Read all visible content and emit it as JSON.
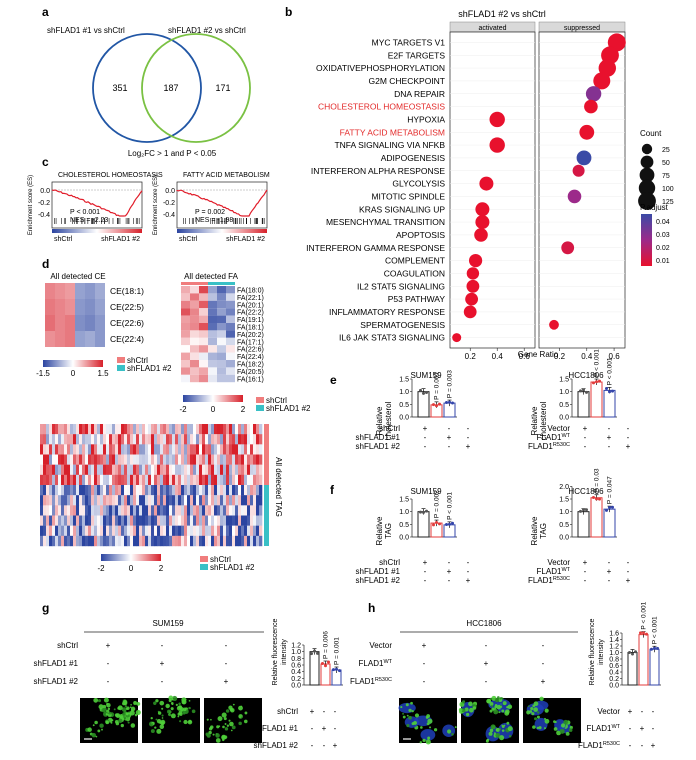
{
  "panels": {
    "a": {
      "label": "a",
      "left_title": "shFLAD1 #1 vs shCtrl",
      "right_title": "shFLAD1 #2 vs shCtrl",
      "left_only": "351",
      "overlap": "187",
      "right_only": "171",
      "caption": "Log₂FC > 1 and P < 0.05",
      "colors": {
        "left": "#2156a5",
        "right": "#7ac143"
      }
    },
    "b": {
      "label": "b",
      "title": "shFLAD1 #2 vs shCtrl",
      "facets": [
        "activated",
        "suppressed"
      ],
      "xlabel": "Gene Ratio",
      "size_legend_title": "Count",
      "color_legend_title": "P.adjust"
    },
    "c": {
      "label": "c",
      "plots": [
        {
          "title": "CHOLESTEROL HOMEOSTASIS",
          "ylabel": "Enrichment score (ES)",
          "stat1": "P < 0.001",
          "stat2": "NES = -2.23",
          "left_group": "shCtrl",
          "right_group": "shFLAD1 #2",
          "y_ticks": [
            "0.0",
            "-0.2",
            "-0.4"
          ]
        },
        {
          "title": "FATTY ACID METABOLISM",
          "ylabel": "Enrichment score (ES)",
          "stat1": "P = 0.002",
          "stat2": "NES = -1.98",
          "left_group": "shCtrl",
          "right_group": "shFLAD1 #2",
          "y_ticks": [
            "0.0",
            "-0.2",
            "-0.4"
          ]
        }
      ]
    },
    "d": {
      "label": "d",
      "ce_title": "All detected CE",
      "ce_rows": [
        "CE(18:1)",
        "CE(22:5)",
        "CE(22:6)",
        "CE(22:4)"
      ],
      "ce_scale": [
        "-1.5",
        "0",
        "1.5"
      ],
      "fa_title": "All detected FA",
      "fa_rows": [
        "FA(18:0)",
        "FA(22:1)",
        "FA(20:1)",
        "FA(22:2)",
        "FA(19:1)",
        "FA(18:1)",
        "FA(20:2)",
        "FA(17:1)",
        "FA(22:6)",
        "FA(22:4)",
        "FA(18:2)",
        "FA(20:5)",
        "FA(16:1)"
      ],
      "fa_scale": [
        "-2",
        "0",
        "2"
      ],
      "tag_title": "All detected TAG",
      "tag_scale": [
        "-2",
        "0",
        "2"
      ],
      "legend_ctrl": "shCtrl",
      "legend_kd": "shFLAD1 #2",
      "colors": {
        "ctrl": "#f07d7d",
        "kd": "#39c0c6",
        "high": "#d7202a",
        "low": "#2b44a0"
      }
    },
    "e": {
      "label": "e",
      "left_title": "SUM159",
      "right_title": "HCC1806",
      "ylabel": "Relative cholesterol",
      "left_pvals": [
        "P = 0.001",
        "P = 0.003"
      ],
      "right_pvals": [
        "P < 0.001",
        "P < 0.001"
      ]
    },
    "f": {
      "label": "f",
      "left_title": "SUM159",
      "right_title": "HCC1806",
      "ylabel": "Relative TAG",
      "left_pvals": [
        "P = 0.002",
        "P < 0.001"
      ],
      "right_pvals": [
        "P = 0.03",
        "P = 0.047"
      ]
    },
    "g": {
      "label": "g",
      "title": "SUM159",
      "ylabel": "Relative fluorescence intensity",
      "pvals": [
        "P = 0.006",
        "P = 0.001"
      ]
    },
    "h": {
      "label": "h",
      "title": "HCC1806",
      "ylabel": "Relative fluorescence intensity",
      "pvals": [
        "P < 0.001",
        "P < 0.001"
      ]
    }
  },
  "groups_sum159": {
    "rows": [
      "shCtrl",
      "shFLAD1 #1",
      "shFLAD1 #2"
    ],
    "signs": [
      [
        "+",
        "-",
        "-"
      ],
      [
        "-",
        "+",
        "-"
      ],
      [
        "-",
        "-",
        "+"
      ]
    ]
  },
  "groups_hcc1806": {
    "rows": [
      "Vector",
      "FLAD1WT",
      "FLAD1R530C"
    ],
    "signs": [
      [
        "+",
        "-",
        "-"
      ],
      [
        "-",
        "+",
        "-"
      ],
      [
        "-",
        "-",
        "+"
      ]
    ]
  },
  "chart_data": [
    {
      "id": "b-dotplot",
      "type": "scatter",
      "title": "shFLAD1 #2 vs shCtrl",
      "xlabel": "Gene Ratio",
      "xlim": [
        0.05,
        0.68
      ],
      "x_ticks": [
        "0.2",
        "0.4",
        "0.6"
      ],
      "categories": [
        "MYC TARGETS V1",
        "E2F TARGETS",
        "OXIDATIVEPHOSPHORYLATION",
        "G2M CHECKPOINT",
        "DNA REPAIR",
        "CHOLESTEROL HOMEOSTASIS",
        "HYPOXIA",
        "FATTY ACID METABOLISM",
        "TNFA SIGNALING VIA NFKB",
        "ADIPOGENESIS",
        "INTERFERON ALPHA RESPONSE",
        "GLYCOLYSIS",
        "MITOTIC SPINDLE",
        "KRAS SIGNALING UP",
        "MESENCHYMAL TRANSITION",
        "APOPTOSIS",
        "INTERFERON GAMMA RESPONSE",
        "COMPLEMENT",
        "COAGULATION",
        "IL2 STAT5 SIGNALING",
        "P53 PATHWAY",
        "INFLAMMATORY RESPONSE",
        "SPERMATOGENESIS",
        "IL6 JAK STAT3 SIGNALING"
      ],
      "highlighted": [
        "CHOLESTEROL HOMEOSTASIS",
        "FATTY ACID METABOLISM"
      ],
      "highlight_color": "#e32b2b",
      "points": [
        {
          "term": "MYC TARGETS V1",
          "facet": "suppressed",
          "x": 0.62,
          "count": 130,
          "padj": 0.005
        },
        {
          "term": "E2F TARGETS",
          "facet": "suppressed",
          "x": 0.57,
          "count": 125,
          "padj": 0.005
        },
        {
          "term": "OXIDATIVEPHOSPHORYLATION",
          "facet": "suppressed",
          "x": 0.55,
          "count": 118,
          "padj": 0.005
        },
        {
          "term": "G2M CHECKPOINT",
          "facet": "suppressed",
          "x": 0.51,
          "count": 112,
          "padj": 0.005
        },
        {
          "term": "DNA REPAIR",
          "facet": "suppressed",
          "x": 0.45,
          "count": 85,
          "padj": 0.03
        },
        {
          "term": "CHOLESTEROL HOMEOSTASIS",
          "facet": "suppressed",
          "x": 0.43,
          "count": 60,
          "padj": 0.005
        },
        {
          "term": "HYPOXIA",
          "facet": "activated",
          "x": 0.4,
          "count": 85,
          "padj": 0.005
        },
        {
          "term": "FATTY ACID METABOLISM",
          "facet": "suppressed",
          "x": 0.4,
          "count": 75,
          "padj": 0.005
        },
        {
          "term": "TNFA SIGNALING VIA NFKB",
          "facet": "activated",
          "x": 0.4,
          "count": 85,
          "padj": 0.005
        },
        {
          "term": "ADIPOGENESIS",
          "facet": "suppressed",
          "x": 0.38,
          "count": 75,
          "padj": 0.045
        },
        {
          "term": "INTERFERON ALPHA RESPONSE",
          "facet": "suppressed",
          "x": 0.34,
          "count": 40,
          "padj": 0.01
        },
        {
          "term": "GLYCOLYSIS",
          "facet": "activated",
          "x": 0.32,
          "count": 65,
          "padj": 0.005
        },
        {
          "term": "MITOTIC SPINDLE",
          "facet": "suppressed",
          "x": 0.31,
          "count": 60,
          "padj": 0.025
        },
        {
          "term": "KRAS SIGNALING UP",
          "facet": "activated",
          "x": 0.29,
          "count": 65,
          "padj": 0.005
        },
        {
          "term": "MESENCHYMAL TRANSITION",
          "facet": "activated",
          "x": 0.29,
          "count": 65,
          "padj": 0.005
        },
        {
          "term": "APOPTOSIS",
          "facet": "activated",
          "x": 0.28,
          "count": 60,
          "padj": 0.005
        },
        {
          "term": "INTERFERON GAMMA RESPONSE",
          "facet": "suppressed",
          "x": 0.26,
          "count": 50,
          "padj": 0.01
        },
        {
          "term": "COMPLEMENT",
          "facet": "activated",
          "x": 0.24,
          "count": 55,
          "padj": 0.005
        },
        {
          "term": "COAGULATION",
          "facet": "activated",
          "x": 0.22,
          "count": 45,
          "padj": 0.005
        },
        {
          "term": "IL2 STAT5 SIGNALING",
          "facet": "activated",
          "x": 0.22,
          "count": 50,
          "padj": 0.005
        },
        {
          "term": "P53 PATHWAY",
          "facet": "activated",
          "x": 0.21,
          "count": 50,
          "padj": 0.005
        },
        {
          "term": "INFLAMMATORY RESPONSE",
          "facet": "activated",
          "x": 0.2,
          "count": 50,
          "padj": 0.005
        },
        {
          "term": "SPERMATOGENESIS",
          "facet": "suppressed",
          "x": 0.16,
          "count": 20,
          "padj": 0.005
        },
        {
          "term": "IL6 JAK STAT3 SIGNALING",
          "facet": "activated",
          "x": 0.1,
          "count": 15,
          "padj": 0.005
        }
      ],
      "size_legend": [
        25,
        50,
        75,
        100,
        125
      ],
      "color_legend_ticks": [
        "0.04",
        "0.03",
        "0.02",
        "0.01"
      ],
      "color_scale": [
        "#e8112d",
        "#9c2a8a",
        "#3a4aa6"
      ]
    },
    {
      "id": "e-left",
      "type": "bar",
      "title": "SUM159",
      "ylabel": "Relative cholesterol",
      "ylim": [
        0,
        1.5
      ],
      "y_ticks": [
        "0.0",
        "0.5",
        "1.0",
        "1.5"
      ],
      "values": [
        1.0,
        0.48,
        0.55
      ],
      "bar_colors": [
        "#222222",
        "#e33b3b",
        "#3344aa"
      ]
    },
    {
      "id": "e-right",
      "type": "bar",
      "title": "HCC1806",
      "ylabel": "Relative cholesterol",
      "ylim": [
        0,
        1.5
      ],
      "y_ticks": [
        "0.0",
        "0.5",
        "1.0",
        "1.5"
      ],
      "values": [
        1.0,
        1.38,
        1.05
      ],
      "bar_colors": [
        "#222222",
        "#e33b3b",
        "#3344aa"
      ]
    },
    {
      "id": "f-left",
      "type": "bar",
      "title": "SUM159",
      "ylabel": "Relative TAG",
      "ylim": [
        0,
        1.5
      ],
      "y_ticks": [
        "0.0",
        "0.5",
        "1.0",
        "1.5"
      ],
      "values": [
        1.0,
        0.55,
        0.48
      ],
      "bar_colors": [
        "#222222",
        "#e33b3b",
        "#3344aa"
      ]
    },
    {
      "id": "f-right",
      "type": "bar",
      "title": "HCC1806",
      "ylabel": "Relative TAG",
      "ylim": [
        0,
        2.0
      ],
      "y_ticks": [
        "0.0",
        "0.5",
        "1.0",
        "1.5",
        "2.0"
      ],
      "values": [
        1.0,
        1.55,
        1.1
      ],
      "bar_colors": [
        "#222222",
        "#e33b3b",
        "#3344aa"
      ]
    },
    {
      "id": "g",
      "type": "bar",
      "title": "SUM159",
      "ylabel": "Relative fluorescence intensity",
      "ylim": [
        0,
        1.2
      ],
      "y_ticks": [
        "0.0",
        "0.2",
        "0.4",
        "0.6",
        "0.8",
        "1.0",
        "1.2"
      ],
      "values": [
        1.0,
        0.63,
        0.45
      ],
      "bar_colors": [
        "#222222",
        "#e33b3b",
        "#3344aa"
      ]
    },
    {
      "id": "h",
      "type": "bar",
      "title": "HCC1806",
      "ylabel": "Relative fluorescence intensity",
      "ylim": [
        0,
        1.6
      ],
      "y_ticks": [
        "0.0",
        "0.2",
        "0.4",
        "0.6",
        "0.8",
        "1.0",
        "1.2",
        "1.4",
        "1.6"
      ],
      "values": [
        1.0,
        1.55,
        1.1
      ],
      "bar_colors": [
        "#222222",
        "#e33b3b",
        "#3344aa"
      ]
    }
  ]
}
